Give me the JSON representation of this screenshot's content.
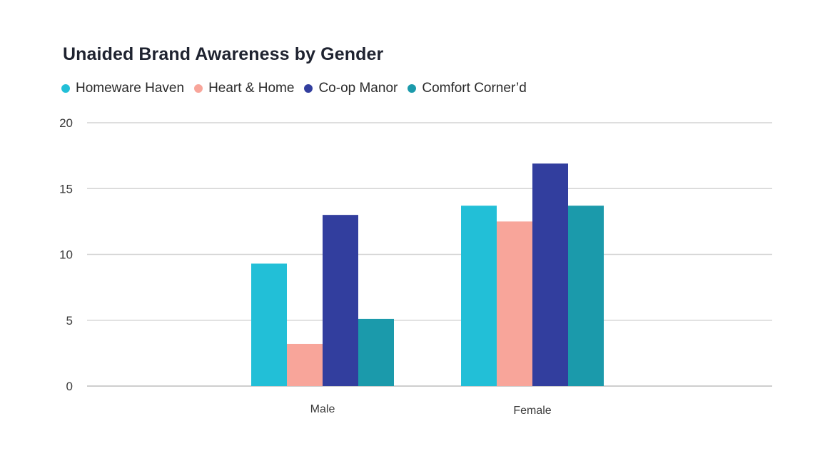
{
  "chart_data": {
    "type": "bar",
    "title": "Unaided Brand Awareness by Gender",
    "xlabel": "",
    "ylabel": "",
    "categories": [
      "Male",
      "Female"
    ],
    "series": [
      {
        "name": "Homeware Haven",
        "color": "#22bfd7",
        "values": [
          9.3,
          13.7
        ]
      },
      {
        "name": "Heart & Home",
        "color": "#f8a59a",
        "values": [
          3.2,
          12.5
        ]
      },
      {
        "name": "Co-op Manor",
        "color": "#323e9e",
        "values": [
          13.0,
          16.9
        ]
      },
      {
        "name": "Comfort Corner’d",
        "color": "#1b9aab",
        "values": [
          5.1,
          13.7
        ]
      }
    ],
    "ylim": [
      0,
      20
    ],
    "yticks": [
      0,
      5,
      10,
      15,
      20
    ],
    "grid": true,
    "legend_position": "top-left"
  }
}
